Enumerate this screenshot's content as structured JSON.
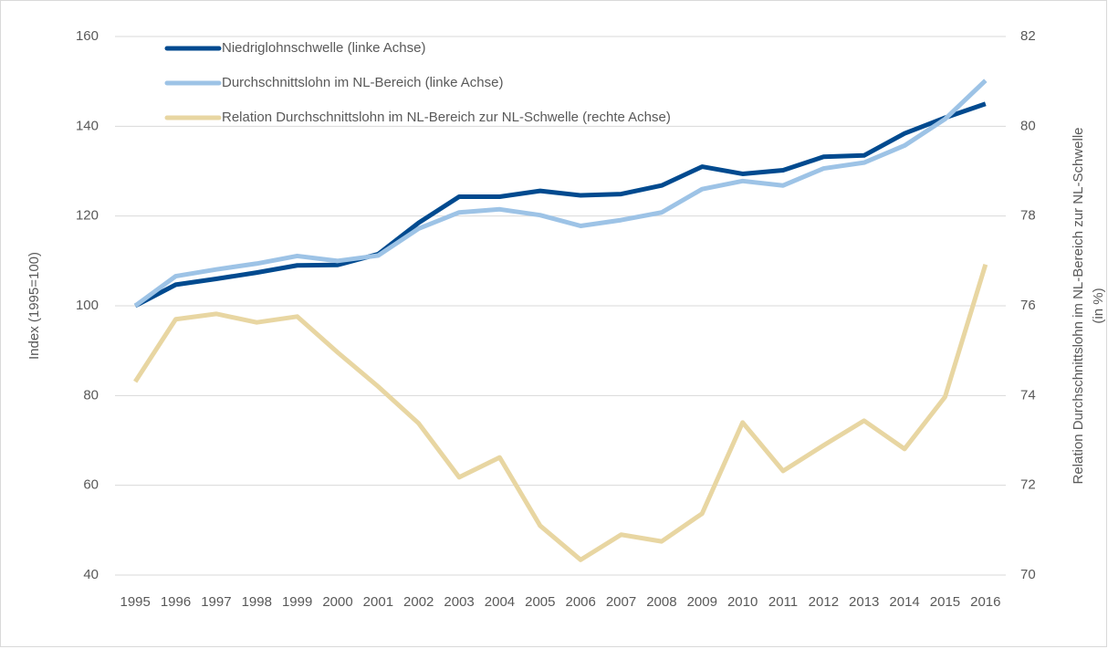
{
  "chart_data": {
    "type": "line",
    "ylabel": "Index (1995=100)",
    "y2label": [
      "Relation Durchschnittslohn im NL-Bereich zur NL-Schwelle",
      "(in %)"
    ],
    "categories": [
      "1995",
      "1996",
      "1997",
      "1998",
      "1999",
      "2000",
      "2001",
      "2002",
      "2003",
      "2004",
      "2005",
      "2006",
      "2007",
      "2008",
      "2009",
      "2010",
      "2011",
      "2012",
      "2013",
      "2014",
      "2015",
      "2016"
    ],
    "series": [
      {
        "name": "Niedriglohnschwelle (linke Achse)",
        "color": "#004a8f",
        "values": [
          100,
          104.7,
          106,
          107.4,
          109,
          109.1,
          111.5,
          118.5,
          124.3,
          124.3,
          125.6,
          124.6,
          124.9,
          126.8,
          131,
          129.4,
          130.2,
          133.2,
          133.5,
          138.4,
          141.9,
          145
        ]
      },
      {
        "name": "Durchschnittslohn im NL-Bereich (linke Achse)",
        "color": "#9dc3e6",
        "values": [
          100,
          106.6,
          108.1,
          109.4,
          111.1,
          110,
          111.2,
          117.2,
          120.8,
          121.5,
          120.2,
          117.8,
          119.1,
          120.8,
          126,
          127.8,
          126.8,
          130.6,
          131.9,
          135.7,
          141.6,
          150.2
        ]
      },
      {
        "name": "Relation Durchschnittslohn im NL-Bereich zur NL-Schwelle (rechte Achse)",
        "color": "#e8d6a2",
        "axis": "y2",
        "values": [
          74.31,
          75.7,
          75.82,
          75.63,
          75.76,
          74.96,
          74.2,
          73.38,
          72.18,
          72.62,
          71.1,
          70.34,
          70.9,
          70.75,
          71.37,
          73.4,
          72.32,
          72.89,
          73.44,
          72.81,
          73.97,
          76.92
        ]
      }
    ],
    "ylim": [
      40,
      160
    ],
    "yticks": [
      40,
      60,
      80,
      100,
      120,
      140,
      160
    ],
    "y2lim": [
      70,
      82
    ],
    "y2ticks": [
      70,
      72,
      74,
      76,
      78,
      80,
      82
    ],
    "grid": true,
    "legend": "top-left"
  }
}
